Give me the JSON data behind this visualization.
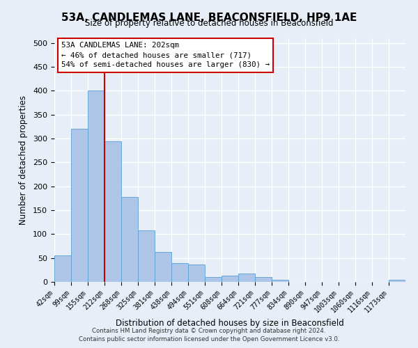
{
  "title": "53A, CANDLEMAS LANE, BEACONSFIELD, HP9 1AE",
  "subtitle": "Size of property relative to detached houses in Beaconsfield",
  "xlabel": "Distribution of detached houses by size in Beaconsfield",
  "ylabel": "Number of detached properties",
  "bin_labels": [
    "42sqm",
    "99sqm",
    "155sqm",
    "212sqm",
    "268sqm",
    "325sqm",
    "381sqm",
    "438sqm",
    "494sqm",
    "551sqm",
    "608sqm",
    "664sqm",
    "721sqm",
    "777sqm",
    "834sqm",
    "890sqm",
    "947sqm",
    "1003sqm",
    "1060sqm",
    "1116sqm",
    "1173sqm"
  ],
  "bar_heights": [
    55,
    320,
    400,
    295,
    178,
    108,
    63,
    40,
    37,
    10,
    13,
    18,
    10,
    5,
    0,
    0,
    0,
    0,
    0,
    0,
    5
  ],
  "bar_color": "#adc6e8",
  "bar_edge_color": "#5a9fd4",
  "vline_x": 3,
  "vline_color": "#cc0000",
  "annotation_title": "53A CANDLEMAS LANE: 202sqm",
  "annotation_line1": "← 46% of detached houses are smaller (717)",
  "annotation_line2": "54% of semi-detached houses are larger (830) →",
  "annotation_box_color": "#ffffff",
  "annotation_box_edge_color": "#cc0000",
  "ylim": [
    0,
    510
  ],
  "yticks": [
    0,
    50,
    100,
    150,
    200,
    250,
    300,
    350,
    400,
    450,
    500
  ],
  "footer_line1": "Contains HM Land Registry data © Crown copyright and database right 2024.",
  "footer_line2": "Contains public sector information licensed under the Open Government Licence v3.0.",
  "bg_color": "#e8eef8"
}
